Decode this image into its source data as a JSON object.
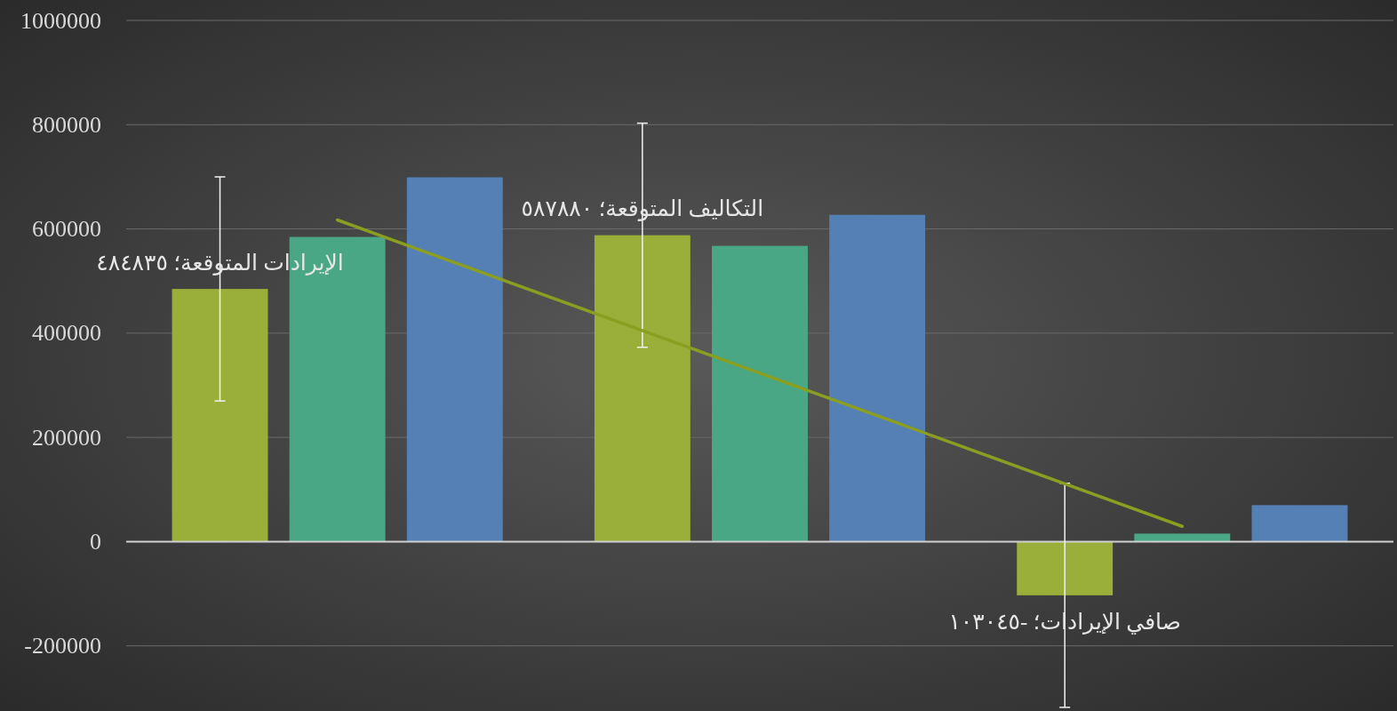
{
  "chart_data": {
    "type": "bar",
    "categories": [
      null,
      null,
      null
    ],
    "ylim": [
      -325000,
      1000000
    ],
    "yticks": [
      -200000,
      0,
      200000,
      400000,
      600000,
      800000,
      1000000
    ],
    "grid": "y",
    "tick_labels": "y",
    "series": [
      {
        "color": "#9aaf3a",
        "values": [
          484835,
          587880,
          -103045
        ],
        "errors": [
          215000,
          215000,
          215000
        ],
        "value_labels": [
          "الإيرادات المتوقعة؛ ٤٨٤٨٣٥",
          "التكاليف المتوقعة؛ ٥٨٧٨٨٠",
          "صافي الإيرادات؛ -١٠٣٠٤٥"
        ]
      },
      {
        "color": "#4aa785",
        "values": [
          584600,
          567500,
          15400
        ]
      },
      {
        "color": "#5580b5",
        "values": [
          699000,
          627000,
          70000
        ]
      },
      {
        "type": "line",
        "color": "#8a9e22",
        "values": [
          617163,
          323223,
          29283
        ]
      }
    ]
  }
}
